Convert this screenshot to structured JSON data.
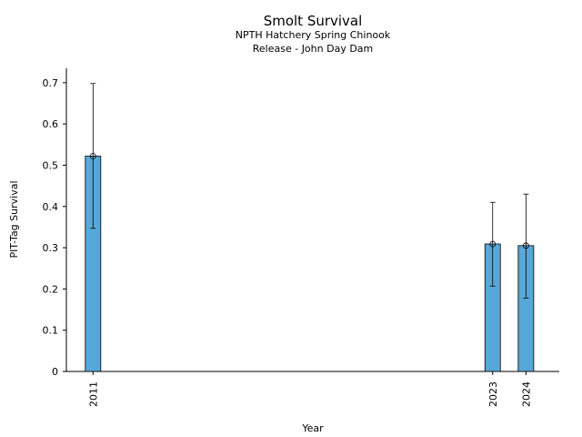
{
  "chart_data": {
    "type": "bar",
    "title": "Smolt Survival",
    "subtitle_lines": [
      "NPTH Hatchery Spring Chinook",
      "Release - John Day Dam"
    ],
    "xlabel": "Year",
    "ylabel": "PIT-Tag Survival",
    "x": [
      2011,
      2023,
      2024
    ],
    "x_tick_labels": [
      "2011",
      "2023",
      "2024"
    ],
    "values": [
      0.522,
      0.309,
      0.305
    ],
    "error_low": [
      0.347,
      0.207,
      0.178
    ],
    "error_high": [
      0.698,
      0.41,
      0.43
    ],
    "y_ticks": [
      0,
      0.1,
      0.2,
      0.3,
      0.4,
      0.5,
      0.6,
      0.7
    ],
    "y_tick_labels": [
      "0",
      "0.1",
      "0.2",
      "0.3",
      "0.4",
      "0.5",
      "0.6",
      "0.7"
    ],
    "ylim": [
      0,
      0.735
    ],
    "xlim": [
      2010.2,
      2025.0
    ],
    "bar_color": "#56a8d8",
    "grid": false,
    "legend": "none"
  }
}
